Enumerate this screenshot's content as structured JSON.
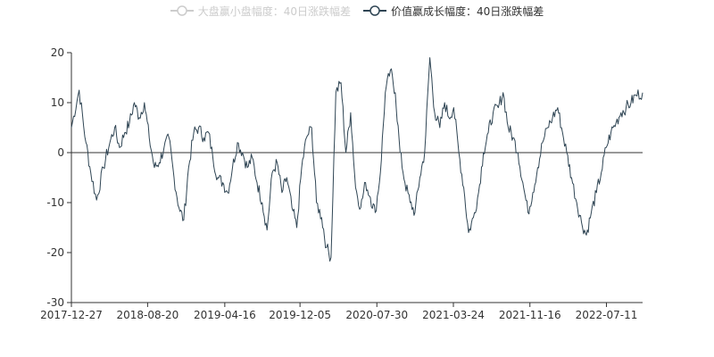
{
  "legend": {
    "items": [
      {
        "label": "大盘赢小盘幅度：40日涨跌幅差",
        "state": "off",
        "color": "#cccccc"
      },
      {
        "label": "价值赢成长幅度：40日涨跌幅差",
        "state": "on",
        "color": "#2f4554"
      }
    ]
  },
  "chart_data": {
    "type": "line",
    "title": "",
    "xlabel": "",
    "ylabel": "",
    "ylim": [
      -30,
      20
    ],
    "y_ticks": [
      20,
      10,
      0,
      -10,
      -20,
      -30
    ],
    "x_tick_labels": [
      "2017-12-27",
      "2018-08-20",
      "2019-04-16",
      "2019-12-05",
      "2020-07-30",
      "2021-03-24",
      "2021-11-16",
      "2022-07-11"
    ],
    "x_range": [
      "2017-12-27",
      "2022-10-31"
    ],
    "grid": false,
    "legend_position": "top-center",
    "series": [
      {
        "name": "大盘赢小盘幅度：40日涨跌幅差",
        "visible": false,
        "color": "#cccccc",
        "x": [],
        "values": []
      },
      {
        "name": "价值赢成长幅度：40日涨跌幅差",
        "visible": true,
        "color": "#2f4554",
        "x": [
          "2017-12-27",
          "2018-01-20",
          "2018-02-10",
          "2018-02-25",
          "2018-03-15",
          "2018-04-05",
          "2018-04-25",
          "2018-05-10",
          "2018-05-25",
          "2018-06-10",
          "2018-06-25",
          "2018-07-10",
          "2018-07-25",
          "2018-08-10",
          "2018-08-25",
          "2018-09-10",
          "2018-09-25",
          "2018-10-10",
          "2018-10-25",
          "2018-11-10",
          "2018-11-25",
          "2018-12-10",
          "2018-12-25",
          "2019-01-10",
          "2019-01-25",
          "2019-02-10",
          "2019-02-25",
          "2019-03-10",
          "2019-03-25",
          "2019-04-10",
          "2019-04-25",
          "2019-05-10",
          "2019-05-25",
          "2019-06-10",
          "2019-06-25",
          "2019-07-10",
          "2019-07-25",
          "2019-08-10",
          "2019-08-25",
          "2019-09-10",
          "2019-09-25",
          "2019-10-10",
          "2019-10-25",
          "2019-11-10",
          "2019-11-25",
          "2019-12-10",
          "2019-12-25",
          "2020-01-10",
          "2020-01-25",
          "2020-02-10",
          "2020-02-25",
          "2020-03-10",
          "2020-03-25",
          "2020-04-10",
          "2020-04-25",
          "2020-05-10",
          "2020-05-25",
          "2020-06-10",
          "2020-06-25",
          "2020-07-10",
          "2020-07-25",
          "2020-08-10",
          "2020-08-25",
          "2020-09-10",
          "2020-09-25",
          "2020-10-10",
          "2020-10-25",
          "2020-11-10",
          "2020-11-25",
          "2020-12-10",
          "2020-12-25",
          "2021-01-10",
          "2021-01-25",
          "2021-02-10",
          "2021-02-25",
          "2021-03-10",
          "2021-03-25",
          "2021-04-10",
          "2021-04-25",
          "2021-05-10",
          "2021-05-25",
          "2021-06-10",
          "2021-06-25",
          "2021-07-10",
          "2021-07-25",
          "2021-08-10",
          "2021-08-25",
          "2021-09-10",
          "2021-09-25",
          "2021-10-10",
          "2021-10-25",
          "2021-11-10",
          "2021-11-25",
          "2021-12-10",
          "2021-12-25",
          "2022-01-10",
          "2022-01-25",
          "2022-02-10",
          "2022-02-25",
          "2022-03-10",
          "2022-03-25",
          "2022-04-10",
          "2022-04-25",
          "2022-05-10",
          "2022-05-25",
          "2022-06-10",
          "2022-06-25",
          "2022-07-10",
          "2022-07-25",
          "2022-08-10",
          "2022-08-25",
          "2022-09-10",
          "2022-09-25",
          "2022-10-10",
          "2022-10-31"
        ],
        "values": [
          5,
          12.5,
          2,
          -4,
          -9.5,
          -3,
          2,
          5,
          1,
          4,
          6,
          10,
          7,
          10,
          3,
          -3,
          -2,
          1,
          3,
          -5,
          -11,
          -13.5,
          -3,
          4,
          5,
          3,
          4,
          -1,
          -5,
          -6,
          -8,
          -3,
          2,
          0,
          -3,
          -1,
          -6,
          -10,
          -15.5,
          -4,
          -2,
          -8,
          -5,
          -11,
          -15,
          -3,
          3,
          5,
          -10,
          -13,
          -19,
          -21,
          12,
          14,
          0,
          8,
          -7,
          -11,
          -6,
          -9,
          -12,
          -4,
          12,
          16.5,
          12,
          0,
          -6,
          -10,
          -12,
          -5,
          0,
          19,
          8,
          5,
          10,
          7,
          9,
          0,
          -7,
          -16,
          -13,
          -8,
          0,
          4,
          8,
          9,
          12,
          5,
          3,
          0,
          -6,
          -12,
          -8,
          -3,
          2,
          5,
          7,
          9,
          4,
          0,
          -5,
          -10,
          -14,
          -16.5,
          -12,
          -8,
          -4,
          1,
          4,
          6,
          8,
          9,
          10,
          11.5,
          12
        ]
      }
    ]
  }
}
